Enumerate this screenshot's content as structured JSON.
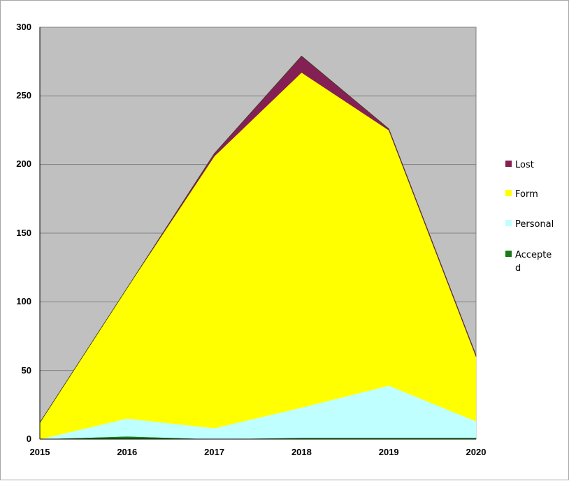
{
  "chart_data": {
    "type": "area",
    "stacked": true,
    "x": [
      "2015",
      "2016",
      "2017",
      "2018",
      "2019",
      "2020"
    ],
    "series": [
      {
        "name": "Accepte d",
        "color": "#1a7a1a",
        "values": [
          0,
          2,
          0,
          1,
          1,
          1
        ]
      },
      {
        "name": "Personal",
        "color": "#c0ffff",
        "values": [
          0,
          13,
          8,
          22,
          38,
          12
        ]
      },
      {
        "name": "Form",
        "color": "#ffff00",
        "values": [
          12,
          95,
          198,
          244,
          186,
          47
        ]
      },
      {
        "name": "Lost",
        "color": "#852055",
        "values": [
          0,
          0,
          2,
          12,
          1,
          1
        ]
      }
    ],
    "y_ticks": [
      "0",
      "50",
      "100",
      "150",
      "200",
      "250",
      "300"
    ],
    "ylim": [
      0,
      300
    ],
    "plot_background": "#c0c0c0",
    "grid": true,
    "legend_placement": "right",
    "legend_labels": {
      "lost": "Lost",
      "form": "Form",
      "personal": "Personal",
      "accepted_line1": "Accepte",
      "accepted_line2": "d"
    }
  }
}
